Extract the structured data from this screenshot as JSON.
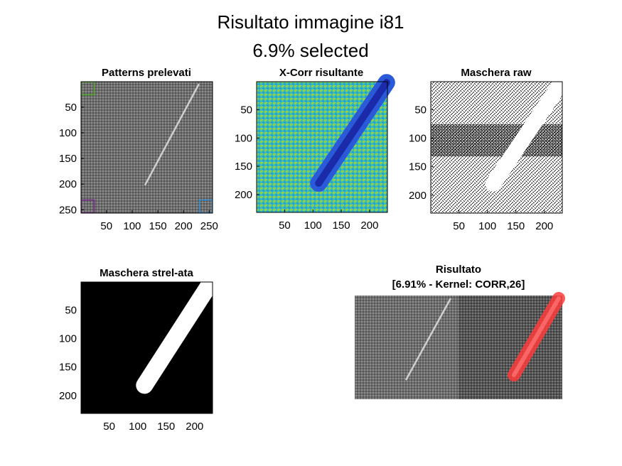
{
  "figure": {
    "title_line1": "Risultato immagine i81",
    "title_line2": "6.9% selected"
  },
  "chart_data": [
    {
      "type": "heatmap",
      "title": "Patterns prelevati",
      "colormap": "gray",
      "xlim": [
        0.5,
        256.5
      ],
      "ylim": [
        0.5,
        256.5
      ],
      "xticks": [
        50,
        100,
        150,
        200,
        250
      ],
      "yticks": [
        50,
        100,
        150,
        200,
        250
      ],
      "streak": {
        "x": [
          125,
          230
        ],
        "y": [
          202,
          5
        ]
      },
      "pattern_boxes": [
        {
          "color": "#4aa626",
          "x": [
            1,
            26
          ],
          "y": [
            1,
            26
          ]
        },
        {
          "color": "#7b2b8e",
          "x": [
            1,
            26
          ],
          "y": [
            231,
            256
          ]
        },
        {
          "color": "#2b8fd6",
          "x": [
            231,
            256
          ],
          "y": [
            231,
            256
          ]
        }
      ]
    },
    {
      "type": "heatmap",
      "title": "X-Corr risultante",
      "colormap": "parula",
      "xlim": [
        0.5,
        231.5
      ],
      "ylim": [
        0.5,
        231.5
      ],
      "xticks": [
        50,
        100,
        150,
        200
      ],
      "yticks": [
        50,
        100,
        150,
        200
      ],
      "band": {
        "x": [
          110,
          230
        ],
        "y": [
          180,
          2
        ]
      }
    },
    {
      "type": "heatmap",
      "title": "Maschera raw",
      "colormap": "binary",
      "xlim": [
        0.5,
        231.5
      ],
      "ylim": [
        0.5,
        231.5
      ],
      "xticks": [
        50,
        100,
        150,
        200
      ],
      "yticks": [
        50,
        100,
        150,
        200
      ],
      "band": {
        "x": [
          110,
          230
        ],
        "y": [
          180,
          2
        ]
      }
    },
    {
      "type": "heatmap",
      "title": "Maschera strel-ata",
      "colormap": "binary",
      "xlim": [
        0.5,
        231.5
      ],
      "ylim": [
        0.5,
        231.5
      ],
      "xticks": [
        50,
        100,
        150,
        200
      ],
      "yticks": [
        50,
        100,
        150,
        200
      ],
      "band": {
        "x": [
          112,
          228
        ],
        "y": [
          182,
          2
        ]
      }
    },
    {
      "type": "heatmap",
      "title": "Risultato",
      "subtitle": "[6.91% - Kernel: CORR,26]",
      "colormap": "gray",
      "panels": [
        "original",
        "masked"
      ],
      "overlay_color": "#ff3b3b"
    }
  ]
}
